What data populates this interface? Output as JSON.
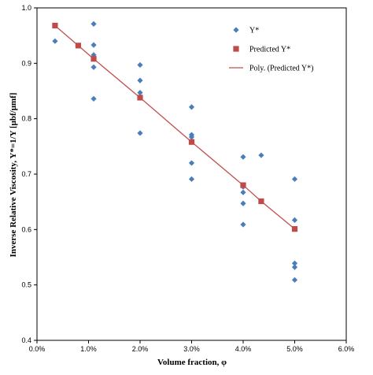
{
  "chart_data": {
    "type": "scatter",
    "xlabel": "Volume fraction, φ",
    "ylabel": "Inverse  Relative Viscosity, Y*=1/Y [μbf/μmf]",
    "xlim": [
      0,
      0.06
    ],
    "ylim": [
      0.4,
      1.0
    ],
    "x_ticks": [
      0,
      0.01,
      0.02,
      0.03,
      0.04,
      0.05,
      0.06
    ],
    "x_tick_labels": [
      "0.0%",
      "1.0%",
      "2.0%",
      "3.0%",
      "4.0%",
      "5.0%",
      "6.0%"
    ],
    "y_ticks": [
      0.4,
      0.5,
      0.6,
      0.7,
      0.8,
      0.9,
      1.0
    ],
    "y_tick_labels": [
      "0.4",
      "0.5",
      "0.6",
      "0.7",
      "0.8",
      "0.9",
      "1.0"
    ],
    "grid": false,
    "legend_position": "top-right",
    "series": [
      {
        "name": "Y*",
        "kind": "scatter",
        "marker": "diamond",
        "color": "#4a7ebb",
        "points": [
          [
            0.0035,
            0.94
          ],
          [
            0.011,
            0.971
          ],
          [
            0.011,
            0.933
          ],
          [
            0.011,
            0.915
          ],
          [
            0.011,
            0.893
          ],
          [
            0.011,
            0.836
          ],
          [
            0.02,
            0.897
          ],
          [
            0.02,
            0.869
          ],
          [
            0.02,
            0.847
          ],
          [
            0.02,
            0.774
          ],
          [
            0.03,
            0.821
          ],
          [
            0.03,
            0.771
          ],
          [
            0.03,
            0.767
          ],
          [
            0.03,
            0.72
          ],
          [
            0.03,
            0.691
          ],
          [
            0.04,
            0.731
          ],
          [
            0.04,
            0.677
          ],
          [
            0.04,
            0.667
          ],
          [
            0.04,
            0.647
          ],
          [
            0.04,
            0.609
          ],
          [
            0.0435,
            0.734
          ],
          [
            0.05,
            0.691
          ],
          [
            0.05,
            0.617
          ],
          [
            0.05,
            0.539
          ],
          [
            0.05,
            0.532
          ],
          [
            0.05,
            0.509
          ]
        ]
      },
      {
        "name": "Predicted Y*",
        "kind": "scatter",
        "marker": "square",
        "color": "#be4b48",
        "points": [
          [
            0.0035,
            0.968
          ],
          [
            0.008,
            0.932
          ],
          [
            0.011,
            0.908
          ],
          [
            0.02,
            0.838
          ],
          [
            0.03,
            0.758
          ],
          [
            0.04,
            0.68
          ],
          [
            0.0435,
            0.651
          ],
          [
            0.05,
            0.601
          ]
        ]
      },
      {
        "name": "Poly. (Predicted Y*)",
        "kind": "line",
        "color": "#c0504d",
        "points": [
          [
            0.0035,
            0.968
          ],
          [
            0.008,
            0.932
          ],
          [
            0.011,
            0.908
          ],
          [
            0.02,
            0.838
          ],
          [
            0.03,
            0.758
          ],
          [
            0.04,
            0.68
          ],
          [
            0.0435,
            0.651
          ],
          [
            0.05,
            0.601
          ]
        ]
      }
    ]
  }
}
